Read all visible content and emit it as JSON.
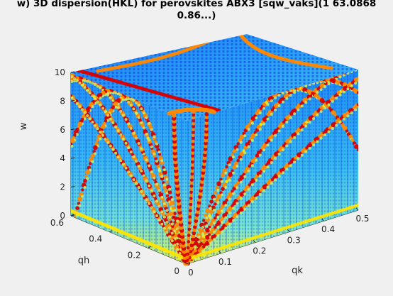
{
  "chart_data": {
    "type": "scatter",
    "title_line1": "w) 3D dispersion(HKL) for perovskites ABX3 [sqw_vaks](1 63.0868",
    "title_line2": "0.86...)",
    "xlabel": "qh",
    "ylabel": "qk",
    "zlabel": "w",
    "xlim": [
      0,
      0.6
    ],
    "ylim": [
      0,
      0.5
    ],
    "zlim": [
      0,
      10
    ],
    "xticks": [
      "0",
      "0.2",
      "0.4",
      "0.6"
    ],
    "yticks": [
      "0",
      "0.1",
      "0.2",
      "0.3",
      "0.4",
      "0.5"
    ],
    "zticks": [
      "0",
      "2",
      "4",
      "6",
      "8",
      "10"
    ],
    "colormap": [
      "#0a3cf0",
      "#1e90ff",
      "#3fc8f0",
      "#7ae8c8",
      "#c8f070",
      "#ffea00",
      "#ff8800",
      "#d80000"
    ],
    "grid": false
  }
}
